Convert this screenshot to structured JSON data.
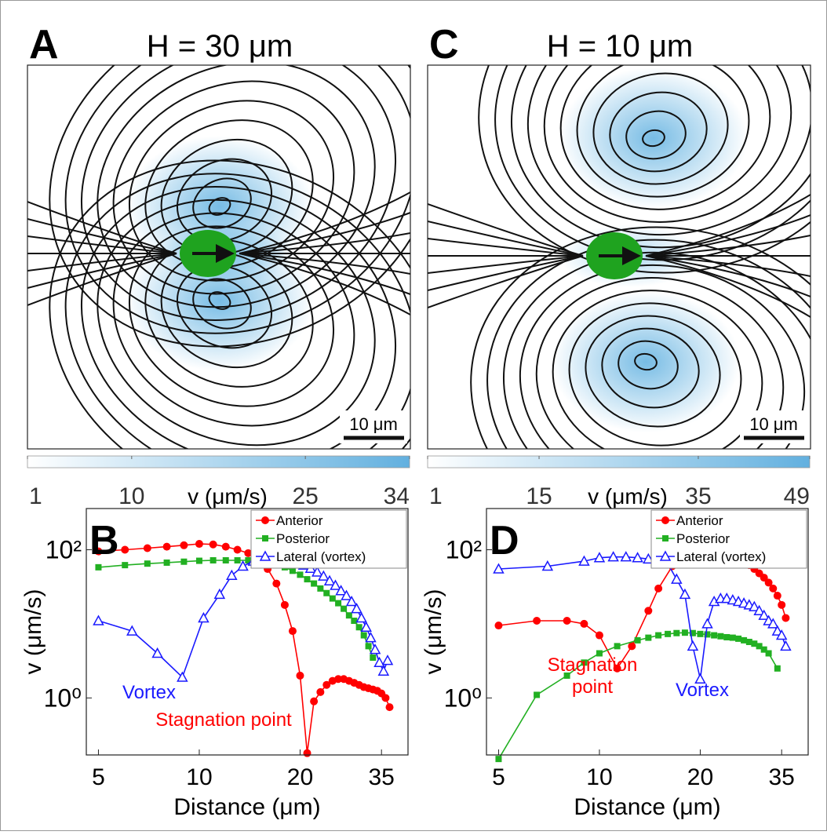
{
  "chart_data": [
    {
      "type": "streamline",
      "panel": "A",
      "title": "H = 30 μm",
      "scale_bar": "10 μm",
      "colorbar": {
        "label": "v (μm/s)",
        "lim": [
          1,
          34
        ],
        "ticks": [
          1,
          10,
          25,
          34
        ]
      }
    },
    {
      "type": "streamline",
      "panel": "C",
      "title": "H = 10 μm",
      "scale_bar": "10 μm",
      "colorbar": {
        "label": "v (μm/s)",
        "lim": [
          1,
          49
        ],
        "ticks": [
          1,
          15,
          35,
          49
        ]
      }
    },
    {
      "type": "line",
      "panel": "B",
      "log_x": true,
      "log_y": true,
      "legend": "upper right",
      "xlabel": "Distance (μm)",
      "ylabel": "v (μm/s)",
      "xlim": [
        4.6,
        42
      ],
      "xticks": [
        5,
        10,
        20,
        35
      ],
      "ylim": [
        0.17,
        360
      ],
      "yticks": [
        {
          "value": 1,
          "label": "10⁰"
        },
        {
          "value": 100,
          "label": "10²"
        }
      ],
      "series": [
        {
          "name": "Anterior",
          "color": "#ff0000",
          "marker": "circle",
          "x": [
            5,
            6,
            7,
            8,
            9,
            10,
            11,
            12,
            13,
            14,
            15,
            16,
            17,
            18,
            19,
            20,
            21,
            22,
            23,
            24,
            25,
            26,
            27,
            28,
            29,
            30,
            31,
            32,
            33,
            34,
            35,
            36,
            37
          ],
          "values": [
            95,
            100,
            105,
            110,
            115,
            120,
            118,
            110,
            100,
            90,
            75,
            55,
            35,
            18,
            8,
            2,
            0.18,
            0.9,
            1.2,
            1.5,
            1.7,
            1.8,
            1.8,
            1.7,
            1.6,
            1.5,
            1.4,
            1.35,
            1.3,
            1.25,
            1.15,
            1,
            0.75
          ]
        },
        {
          "name": "Posterior",
          "color": "#22b022",
          "marker": "square",
          "x": [
            5,
            6,
            7,
            8,
            9,
            10,
            11,
            12,
            13,
            14,
            15,
            16,
            17,
            18,
            19,
            20,
            21,
            22,
            23,
            24,
            25,
            26,
            27,
            28,
            29,
            30,
            31,
            32,
            33
          ],
          "values": [
            58,
            62,
            65,
            67,
            69,
            71,
            72,
            72,
            72,
            72,
            71,
            68,
            63,
            58,
            52,
            46,
            40,
            35,
            30,
            26,
            22,
            19,
            16,
            13,
            11,
            9,
            7,
            5,
            3.5
          ]
        },
        {
          "name": "Lateral (vortex)",
          "color": "#1a1aff",
          "marker": "triangle",
          "x": [
            5,
            6.3,
            7.5,
            8.9,
            10.3,
            11.5,
            12.5,
            13.5,
            14.5,
            15.5,
            16.5,
            17.5,
            18.5,
            19.5,
            20.5,
            21.5,
            22.5,
            23.5,
            24.5,
            25.5,
            26.5,
            27.5,
            28.5,
            29.5,
            30.5,
            31.5,
            32.5,
            33.5,
            34.5,
            35.5,
            36.5
          ],
          "values": [
            11,
            8,
            4,
            1.9,
            12,
            25,
            45,
            60,
            70,
            75,
            75,
            74,
            72,
            68,
            62,
            56,
            50,
            44,
            38,
            33,
            28,
            24,
            20,
            16,
            12,
            9,
            6.5,
            4.5,
            3,
            2.3,
            3.2
          ]
        }
      ],
      "annotations": [
        {
          "lines": [
            "Vortex"
          ],
          "color": "#1a1aff"
        },
        {
          "lines": [
            "Stagnation point"
          ],
          "color": "#ff0000"
        }
      ]
    },
    {
      "type": "line",
      "panel": "D",
      "log_x": true,
      "log_y": true,
      "legend": "upper right",
      "xlabel": "Distance (μm)",
      "ylabel": "v (μm/s)",
      "xlim": [
        4.6,
        42
      ],
      "xticks": [
        5,
        10,
        20,
        35
      ],
      "ylim": [
        0.17,
        360
      ],
      "yticks": [
        {
          "value": 1,
          "label": "10⁰"
        },
        {
          "value": 100,
          "label": "10²"
        }
      ],
      "series": [
        {
          "name": "Anterior",
          "color": "#ff0000",
          "marker": "circle",
          "x": [
            5,
            6.5,
            8,
            9,
            10,
            11.3,
            12.5,
            14,
            15,
            16.5,
            18,
            19,
            20,
            21,
            22,
            23,
            24,
            25,
            26,
            27,
            28,
            29,
            30,
            31,
            32,
            33,
            34,
            35,
            36
          ],
          "values": [
            9.5,
            11,
            11,
            10,
            7,
            2.5,
            5,
            15,
            30,
            60,
            90,
            98,
            100,
            100,
            98,
            95,
            90,
            82,
            76,
            70,
            62,
            55,
            48,
            42,
            36,
            30,
            24,
            18,
            12
          ]
        },
        {
          "name": "Posterior",
          "color": "#22b022",
          "marker": "square",
          "x": [
            5,
            6.5,
            8,
            9,
            10,
            11.3,
            13,
            14,
            15,
            16,
            17,
            18,
            19,
            20,
            21,
            22,
            23,
            24,
            25,
            26,
            27,
            28,
            29,
            30,
            31,
            32,
            34
          ],
          "values": [
            0.15,
            1.1,
            2,
            3,
            4,
            5,
            6,
            6.5,
            7,
            7.3,
            7.5,
            7.6,
            7.5,
            7.3,
            7.2,
            7,
            6.8,
            6.6,
            6.5,
            6.3,
            6,
            5.7,
            5.4,
            5,
            4.5,
            4,
            2.5
          ]
        },
        {
          "name": "Lateral (vortex)",
          "color": "#1a1aff",
          "marker": "triangle",
          "x": [
            5,
            7,
            9,
            10,
            11,
            12,
            13,
            14,
            15,
            16,
            17,
            18,
            19,
            20,
            21,
            22,
            23,
            24,
            25,
            26,
            27,
            28,
            29,
            30,
            31,
            32,
            33,
            34,
            35,
            36
          ],
          "values": [
            55,
            60,
            70,
            78,
            80,
            80,
            78,
            75,
            70,
            65,
            40,
            25,
            5,
            1.8,
            10,
            20,
            22,
            22,
            21,
            20,
            19,
            18,
            17,
            15,
            13,
            11,
            10,
            8,
            7,
            5
          ]
        }
      ],
      "annotations": [
        {
          "lines": [
            "Stagnation",
            "point"
          ],
          "color": "#ff0000"
        },
        {
          "lines": [
            "Vortex"
          ],
          "color": "#1a1aff"
        }
      ]
    }
  ]
}
